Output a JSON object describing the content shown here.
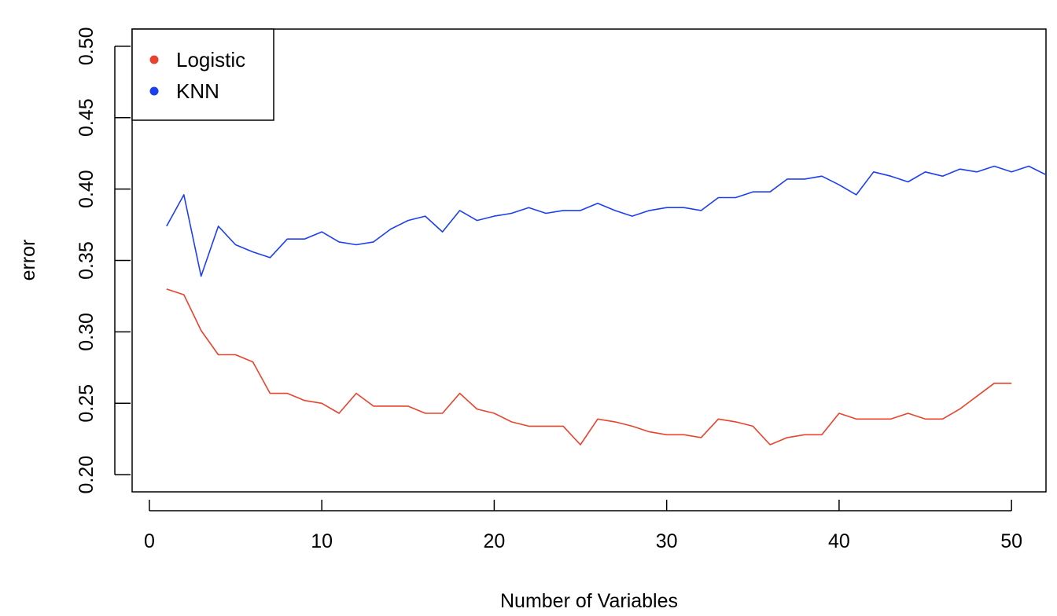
{
  "chart_data": {
    "type": "line",
    "title": "",
    "xlabel": "Number of Variables",
    "ylabel": "error",
    "xlim": [
      -1,
      52
    ],
    "ylim": [
      0.188,
      0.512
    ],
    "x_ticks": [
      0,
      10,
      20,
      30,
      40,
      50
    ],
    "y_ticks": [
      0.2,
      0.25,
      0.3,
      0.35,
      0.4,
      0.45,
      0.5
    ],
    "x_tick_labels": [
      "0",
      "10",
      "20",
      "30",
      "40",
      "50"
    ],
    "y_tick_labels": [
      "0.20",
      "0.25",
      "0.30",
      "0.35",
      "0.40",
      "0.45",
      "0.50"
    ],
    "grid": false,
    "legend_position": "top-left",
    "series": [
      {
        "name": "Logistic",
        "color": "#e8432d",
        "x": [
          1,
          2,
          3,
          4,
          5,
          6,
          7,
          8,
          9,
          10,
          11,
          12,
          13,
          14,
          15,
          16,
          17,
          18,
          19,
          20,
          21,
          22,
          23,
          24,
          25,
          26,
          27,
          28,
          29,
          30,
          31,
          32,
          33,
          34,
          35,
          36,
          37,
          38,
          39,
          40,
          41,
          42,
          43,
          44,
          45,
          46,
          47,
          48,
          49,
          50
        ],
        "values": [
          0.33,
          0.326,
          0.301,
          0.284,
          0.284,
          0.279,
          0.257,
          0.257,
          0.252,
          0.25,
          0.243,
          0.257,
          0.248,
          0.248,
          0.248,
          0.243,
          0.243,
          0.257,
          0.246,
          0.243,
          0.237,
          0.234,
          0.234,
          0.234,
          0.221,
          0.239,
          0.237,
          0.234,
          0.23,
          0.228,
          0.228,
          0.226,
          0.239,
          0.237,
          0.234,
          0.221,
          0.226,
          0.228,
          0.228,
          0.243,
          0.239,
          0.239,
          0.239,
          0.243,
          0.239,
          0.239,
          0.246,
          0.255,
          0.264,
          0.264
        ]
      },
      {
        "name": "KNN",
        "color": "#1c3ff0",
        "x": [
          1,
          2,
          3,
          4,
          5,
          6,
          7,
          8,
          9,
          10,
          11,
          12,
          13,
          14,
          15,
          16,
          17,
          18,
          19,
          20,
          21,
          22,
          23,
          24,
          25,
          26,
          27,
          28,
          29,
          30,
          31,
          32,
          33,
          34,
          35,
          36,
          37,
          38,
          39,
          40,
          41,
          42,
          43,
          44,
          45,
          46,
          47,
          48,
          49,
          50,
          51,
          52
        ],
        "values": [
          0.374,
          0.396,
          0.339,
          0.374,
          0.361,
          0.356,
          0.352,
          0.365,
          0.365,
          0.37,
          0.363,
          0.361,
          0.363,
          0.372,
          0.378,
          0.381,
          0.37,
          0.385,
          0.378,
          0.381,
          0.383,
          0.387,
          0.383,
          0.385,
          0.385,
          0.39,
          0.385,
          0.381,
          0.385,
          0.387,
          0.387,
          0.385,
          0.394,
          0.394,
          0.398,
          0.398,
          0.407,
          0.407,
          0.409,
          0.403,
          0.396,
          0.412,
          0.409,
          0.405,
          0.412,
          0.409,
          0.414,
          0.412,
          0.416,
          0.412,
          0.416,
          0.41
        ]
      }
    ]
  }
}
